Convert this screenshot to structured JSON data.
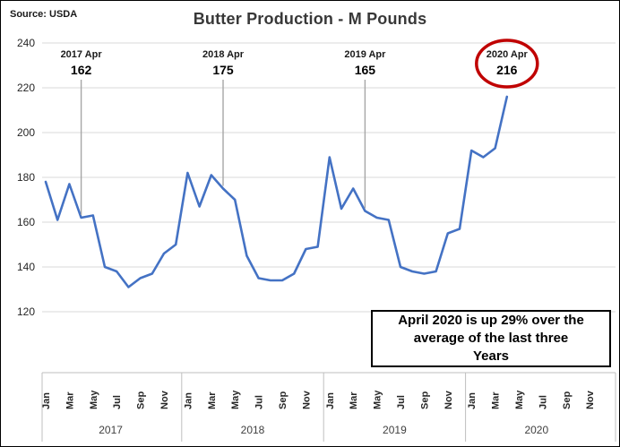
{
  "source": "Source: USDA",
  "title": "Butter Production - M Pounds",
  "callout": {
    "text": "April 2020 is up 29% over the\naverage of the last three\nYears"
  },
  "chart_data": {
    "type": "line",
    "title": "Butter Production - M Pounds",
    "ylabel": "",
    "xlabel": "",
    "ylim": [
      120,
      240
    ],
    "y_ticks": [
      240,
      220,
      200,
      180,
      160,
      140,
      120
    ],
    "grid": true,
    "years": [
      "2017",
      "2018",
      "2019",
      "2020"
    ],
    "month_tick_labels": [
      "Jan",
      "Mar",
      "May",
      "Jul",
      "Sep",
      "Nov"
    ],
    "series": [
      {
        "name": "Butter Production (M Pounds)",
        "color": "#4472C4",
        "values": [
          178,
          161,
          177,
          162,
          163,
          140,
          138,
          131,
          135,
          137,
          146,
          150,
          182,
          167,
          181,
          175,
          170,
          145,
          135,
          134,
          134,
          137,
          148,
          149,
          189,
          166,
          175,
          165,
          162,
          161,
          140,
          138,
          137,
          138,
          155,
          157,
          192,
          189,
          193,
          216
        ]
      }
    ],
    "annotations": [
      {
        "label": "2017 Apr",
        "value": "162",
        "month_index": 3,
        "circled": false
      },
      {
        "label": "2018 Apr",
        "value": "175",
        "month_index": 15,
        "circled": false
      },
      {
        "label": "2019 Apr",
        "value": "165",
        "month_index": 27,
        "circled": false
      },
      {
        "label": "2020 Apr",
        "value": "216",
        "month_index": 39,
        "circled": true
      }
    ],
    "colors": {
      "line": "#4472C4",
      "gridline": "#D9D9D9",
      "axis": "#BFBFBF",
      "annotation_line": "#A6A6A6",
      "highlight_circle": "#C00000",
      "tick_text": "#262626"
    }
  }
}
